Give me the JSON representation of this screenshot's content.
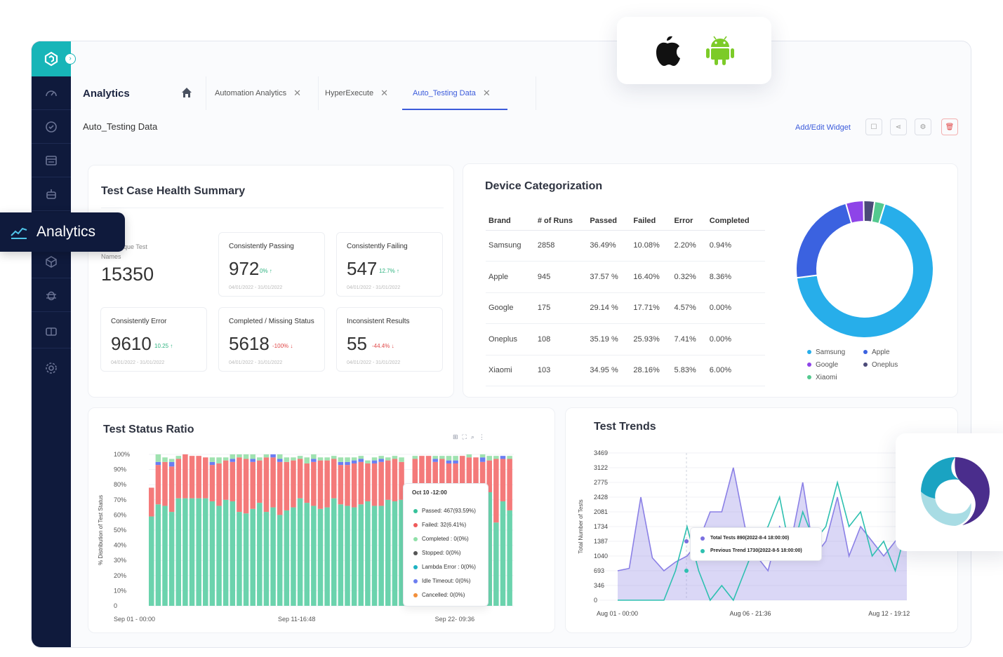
{
  "colors": {
    "brand": "#0f1a3c",
    "teal": "#17b5b8",
    "accent": "#3b5bdb",
    "passed": "#6bd3ad",
    "failed": "#f47a7a",
    "completed": "#9fe2b0",
    "idle": "#6b7df2"
  },
  "header": {
    "title": "Analytics",
    "subtitle": "Auto_Testing Data",
    "add_widget": "Add/Edit Widget"
  },
  "tabs": [
    {
      "label": "Automation Analytics"
    },
    {
      "label": "HyperExecute"
    },
    {
      "label": "Auto_Testing Data"
    }
  ],
  "analytics_pill": "Analytics",
  "health": {
    "title": "Test Case Health Summary",
    "unique_label_a": "ique Test",
    "unique_label_b": "Names",
    "unique_value": "15350",
    "tiles": [
      {
        "label": "Consistently Passing",
        "value": "972",
        "delta": "0% ↑",
        "range": "04/01/2022 - 31/01/2022"
      },
      {
        "label": "Consistently Failing",
        "value": "547",
        "delta": "12.7% ↑",
        "range": "04/01/2022 - 31/01/2022"
      },
      {
        "label": "Consistently Error",
        "value": "9610",
        "delta": "10.25 ↑",
        "range": "04/01/2022 - 31/01/2022"
      },
      {
        "label": "Completed / Missing Status",
        "value": "5618",
        "delta": "-100% ↓",
        "range": "04/01/2022 - 31/01/2022"
      },
      {
        "label": "Inconsistent Results",
        "value": "55",
        "delta": "-44.4% ↓",
        "range": "04/01/2022 - 31/01/2022"
      }
    ]
  },
  "device": {
    "title": "Device Categorization",
    "columns": [
      "Brand",
      "# of Runs",
      "Passed",
      "Failed",
      "Error",
      "Completed"
    ],
    "rows": [
      [
        "Samsung",
        "2858",
        "36.49%",
        "10.08%",
        "2.20%",
        "0.94%"
      ],
      [
        "Apple",
        "945",
        "37.57 %",
        "16.40%",
        "0.32%",
        "8.36%"
      ],
      [
        "Google",
        "175",
        "29.14 %",
        "17.71%",
        "4.57%",
        "0.00%"
      ],
      [
        "Oneplus",
        "108",
        "35.19 %",
        "25.93%",
        "7.41%",
        "0.00%"
      ],
      [
        "Xiaomi",
        "103",
        "34.95 %",
        "28.16%",
        "5.83%",
        "6.00%"
      ]
    ],
    "legend": [
      {
        "name": "Samsung",
        "color": "#27aeea"
      },
      {
        "name": "Apple",
        "color": "#3b62e0"
      },
      {
        "name": "Google",
        "color": "#8e44e8"
      },
      {
        "name": "Oneplus",
        "color": "#4b4a78"
      },
      {
        "name": "Xiaomi",
        "color": "#54c98f"
      }
    ]
  },
  "status_ratio": {
    "title": "Test Status Ratio",
    "tooltip": {
      "title": "Oct 10 -12:00",
      "items": [
        {
          "label": "Passed: 467(93.59%)",
          "color": "#37c29a"
        },
        {
          "label": "Failed: 32(6.41%)",
          "color": "#ef5a5a"
        },
        {
          "label": "Completed : 0(0%)",
          "color": "#8fe0a8"
        },
        {
          "label": "Stopped: 0(0%)",
          "color": "#555555"
        },
        {
          "label": "Lambda Error : 0(0%)",
          "color": "#1fb2c2"
        },
        {
          "label": "Idle Timeout: 0(0%)",
          "color": "#6d7ef0"
        },
        {
          "label": "Cancelled: 0(0%)",
          "color": "#f28f3b"
        }
      ]
    }
  },
  "trends": {
    "title": "Test Trends",
    "tooltip": [
      {
        "label": "Total Tests 890(2022-8-4 18:00:00)",
        "color": "#7a6fe0"
      },
      {
        "label": "Previous Trend 1730(2022-8-5 18:00:00)",
        "color": "#2ec0b0"
      }
    ]
  },
  "chart_data": [
    {
      "type": "bar",
      "stacked": true,
      "title": "Test Status Ratio",
      "ylabel": "% Distribution of Test Status",
      "yticks": [
        "100%",
        "90%",
        "80%",
        "70%",
        "60%",
        "50%",
        "40%",
        "30%",
        "20%",
        "10%",
        "0"
      ],
      "xticks": [
        "Sep 01 - 00:00",
        "Sep 11-16:48",
        "Sep 22- 09:36"
      ],
      "ylim": [
        0,
        100
      ],
      "series": [
        {
          "name": "Passed",
          "values": [
            59,
            67,
            66,
            62,
            71,
            71,
            71,
            71,
            71,
            69,
            66,
            70,
            69,
            62,
            61,
            64,
            68,
            62,
            65,
            60,
            63,
            65,
            71,
            68,
            66,
            64,
            65,
            71,
            67,
            66,
            65,
            67,
            69,
            66,
            66,
            70,
            69,
            70,
            10,
            64,
            64,
            61,
            64,
            63,
            66,
            63,
            57,
            57,
            69,
            54,
            75,
            55,
            69,
            63
          ]
        },
        {
          "name": "Failed",
          "values": [
            19,
            26,
            29,
            30,
            26,
            29,
            28,
            28,
            27,
            24,
            28,
            26,
            26,
            36,
            36,
            31,
            28,
            36,
            33,
            35,
            32,
            31,
            26,
            26,
            29,
            32,
            31,
            26,
            26,
            27,
            29,
            28,
            25,
            28,
            29,
            26,
            28,
            25,
            6,
            33,
            35,
            38,
            31,
            34,
            28,
            31,
            42,
            41,
            29,
            41,
            21,
            42,
            28,
            34
          ]
        },
        {
          "name": "Idle Timeout",
          "values": [
            0,
            2,
            0,
            3,
            0,
            0,
            0,
            0,
            0,
            2,
            0,
            0,
            2,
            0,
            0,
            2,
            0,
            0,
            2,
            2,
            0,
            0,
            0,
            0,
            2,
            0,
            0,
            0,
            2,
            2,
            2,
            2,
            0,
            2,
            2,
            0,
            0,
            0,
            0,
            0,
            0,
            0,
            2,
            0,
            2,
            2,
            0,
            0,
            0,
            3,
            0,
            0,
            2,
            0
          ]
        },
        {
          "name": "Completed",
          "values": [
            0,
            5,
            3,
            2,
            2,
            0,
            0,
            0,
            0,
            3,
            4,
            2,
            3,
            2,
            3,
            3,
            2,
            2,
            0,
            3,
            3,
            2,
            2,
            4,
            3,
            2,
            2,
            2,
            3,
            3,
            2,
            2,
            2,
            2,
            2,
            2,
            2,
            3,
            0,
            2,
            0,
            0,
            2,
            2,
            3,
            3,
            0,
            2,
            0,
            2,
            3,
            2,
            0,
            2
          ]
        }
      ]
    },
    {
      "type": "donut",
      "title": "Device Categorization",
      "categories": [
        "Samsung",
        "Apple",
        "Google",
        "Oneplus",
        "Xiaomi"
      ],
      "values": [
        2858,
        945,
        175,
        108,
        103
      ]
    },
    {
      "type": "area",
      "title": "Test Trends",
      "ylabel": "Total Number of Tests",
      "yticks": [
        "3469",
        "3122",
        "2775",
        "2428",
        "2081",
        "1734",
        "1387",
        "1040",
        "693",
        "346",
        "0"
      ],
      "xticks": [
        "Aug 01 - 00:00",
        "Aug 06 - 21:36",
        "Aug 12 - 19:12"
      ],
      "ylim": [
        0,
        3469
      ],
      "series": [
        {
          "name": "Total Tests",
          "values": [
            693,
            750,
            2428,
            1000,
            693,
            900,
            1040,
            1387,
            2081,
            2081,
            3122,
            1734,
            1040,
            693,
            1734,
            1387,
            2775,
            1040,
            1387,
            2428,
            1040,
            1734,
            1387,
            1040,
            1387,
            1734
          ]
        },
        {
          "name": "Previous Trend",
          "values": [
            0,
            0,
            0,
            0,
            0,
            693,
            1734,
            693,
            0,
            346,
            0,
            693,
            1387,
            1734,
            2428,
            1040,
            2081,
            1387,
            1734,
            2775,
            1734,
            2081,
            1040,
            1387,
            693,
            1734
          ]
        }
      ]
    }
  ]
}
